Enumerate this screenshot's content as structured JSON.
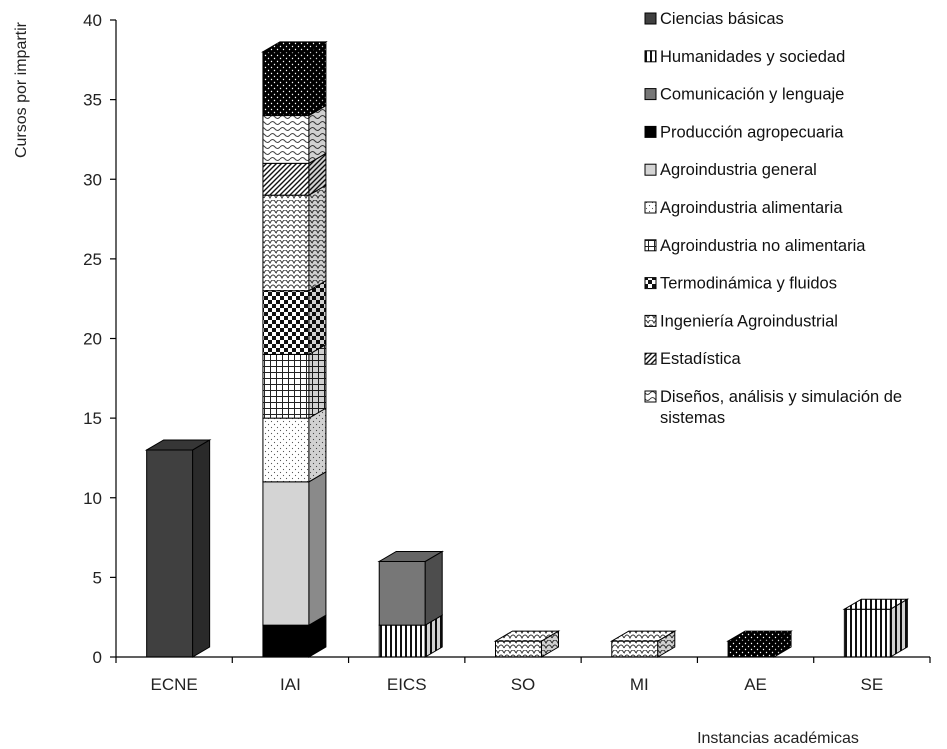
{
  "chart_data": {
    "type": "stacked-bar-3d",
    "title": "",
    "xlabel": "Instancias académicas",
    "ylabel": "Cursos por impartir",
    "ylim": [
      0,
      40
    ],
    "yticks": [
      0,
      5,
      10,
      15,
      20,
      25,
      30,
      35,
      40
    ],
    "categories": [
      "ECNE",
      "IAI",
      "EICS",
      "SO",
      "MI",
      "AE",
      "SE"
    ],
    "legend_position": "right",
    "series": [
      {
        "name": "Ciencias básicas",
        "pattern": "solid-dark",
        "color": "#404040",
        "values": [
          13,
          0,
          0,
          0,
          0,
          0,
          0
        ]
      },
      {
        "name": "Humanidades y sociedad",
        "pattern": "vertical-lines",
        "color": "#ffffff",
        "values": [
          0,
          0,
          2,
          0,
          0,
          0,
          3
        ]
      },
      {
        "name": "Comunicación y lenguaje",
        "pattern": "solid-mid",
        "color": "#777777",
        "values": [
          0,
          0,
          4,
          0,
          0,
          0,
          0
        ]
      },
      {
        "name": "Producción agropecuaria",
        "pattern": "solid-black",
        "color": "#000000",
        "values": [
          0,
          2,
          0,
          0,
          0,
          0,
          0
        ]
      },
      {
        "name": "Agroindustria general",
        "pattern": "solid-light",
        "color": "#d4d4d4",
        "values": [
          0,
          9,
          0,
          0,
          0,
          0,
          0
        ]
      },
      {
        "name": "Agroindustria alimentaria",
        "pattern": "dots",
        "color": "#ffffff",
        "values": [
          0,
          4,
          0,
          0,
          0,
          0,
          0
        ]
      },
      {
        "name": "Agroindustria no alimentaria",
        "pattern": "grid",
        "color": "#ffffff",
        "values": [
          0,
          4,
          0,
          0,
          0,
          0,
          0
        ]
      },
      {
        "name": "Termodinámica y fluidos",
        "pattern": "checker",
        "color": "#ffffff",
        "values": [
          0,
          4,
          0,
          0,
          0,
          0,
          0
        ]
      },
      {
        "name": "Ingeniería Agroindustrial",
        "pattern": "scales",
        "color": "#ffffff",
        "values": [
          0,
          6,
          0,
          1,
          1,
          0,
          0
        ]
      },
      {
        "name": "Estadística",
        "pattern": "diagonal",
        "color": "#ffffff",
        "values": [
          0,
          2,
          0,
          0,
          0,
          0,
          0
        ]
      },
      {
        "name": "Diseños, análisis y simulación de sistemas",
        "name_lines": [
          "Diseños, análisis y simulación de",
          "sistemas"
        ],
        "pattern": "waves",
        "color": "#ffffff",
        "values": [
          0,
          3,
          0,
          0,
          0,
          0,
          0
        ]
      },
      {
        "name": "",
        "pattern": "black-dots",
        "color": "#000000",
        "values": [
          0,
          4,
          0,
          0,
          0,
          1,
          0
        ]
      }
    ]
  }
}
